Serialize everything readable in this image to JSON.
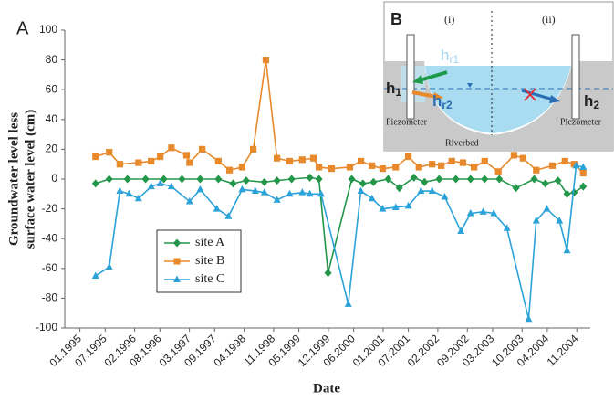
{
  "chart_data": {
    "type": "line",
    "panel_label": "A",
    "y_label_lines": [
      "Groundwater level less",
      "surface water level (cm)"
    ],
    "x_label": "Date",
    "xlim": [
      1994.7,
      2005.1
    ],
    "xticks": [
      {
        "value": 1995.0,
        "label": "01.1995"
      },
      {
        "value": 1995.5,
        "label": "07.1995"
      },
      {
        "value": 1996.083,
        "label": "02.1996"
      },
      {
        "value": 1996.583,
        "label": "08.1996"
      },
      {
        "value": 1997.167,
        "label": "03.1997"
      },
      {
        "value": 1997.667,
        "label": "09.1997"
      },
      {
        "value": 1998.25,
        "label": "04.1998"
      },
      {
        "value": 1998.833,
        "label": "11.1998"
      },
      {
        "value": 1999.333,
        "label": "05.1999"
      },
      {
        "value": 1999.917,
        "label": "12.1999"
      },
      {
        "value": 2000.417,
        "label": "06.2000"
      },
      {
        "value": 2001.0,
        "label": "01.2001"
      },
      {
        "value": 2001.5,
        "label": "07.2001"
      },
      {
        "value": 2002.083,
        "label": "02.2002"
      },
      {
        "value": 2002.667,
        "label": "09.2002"
      },
      {
        "value": 2003.167,
        "label": "03.2003"
      },
      {
        "value": 2003.75,
        "label": "10.2003"
      },
      {
        "value": 2004.25,
        "label": "04.2004"
      },
      {
        "value": 2004.833,
        "label": "11.2004"
      }
    ],
    "ylim": [
      -100,
      100
    ],
    "yticks": [
      -100,
      -80,
      -60,
      -40,
      -20,
      0,
      20,
      40,
      60,
      80,
      100
    ],
    "legend": "lower-left",
    "series": [
      {
        "name": "site A",
        "color": "#23964a",
        "marker": "diamond",
        "x": [
          1995.31,
          1995.58,
          1995.94,
          1996.3,
          1996.66,
          1997.02,
          1997.38,
          1997.74,
          1998.03,
          1998.29,
          1998.65,
          1998.9,
          1999.19,
          1999.55,
          1999.73,
          1999.91,
          2000.38,
          2000.6,
          2000.81,
          2001.1,
          2001.32,
          2001.61,
          2001.82,
          2002.11,
          2002.44,
          2002.73,
          2003.01,
          2003.3,
          2003.63,
          2003.99,
          2004.21,
          2004.46,
          2004.64,
          2004.78,
          2004.96
        ],
        "values": [
          -3,
          0,
          0,
          0,
          0,
          0,
          0,
          0,
          -3,
          -1,
          -2,
          -1,
          0,
          1,
          0,
          -63,
          0,
          -3,
          -2,
          0,
          -6,
          1,
          -2,
          0,
          0,
          0,
          0,
          0,
          -6,
          0,
          -3,
          -1,
          -10,
          -9,
          -5
        ]
      },
      {
        "name": "site B",
        "color": "#e8892b",
        "marker": "square",
        "x": [
          1995.31,
          1995.58,
          1995.79,
          1996.16,
          1996.41,
          1996.59,
          1996.81,
          1997.11,
          1997.17,
          1997.42,
          1997.74,
          1997.96,
          1998.21,
          1998.43,
          1998.68,
          1998.9,
          1999.15,
          1999.4,
          1999.62,
          1999.73,
          1999.98,
          2000.34,
          2000.56,
          2000.78,
          2000.99,
          2001.25,
          2001.5,
          2001.71,
          2001.97,
          2002.15,
          2002.36,
          2002.58,
          2002.8,
          2003.01,
          2003.28,
          2003.59,
          2003.77,
          2004.03,
          2004.35,
          2004.6,
          2004.78,
          2004.96
        ],
        "values": [
          15,
          18,
          10,
          11,
          12,
          15,
          21,
          16,
          11,
          20,
          12,
          6,
          8,
          20,
          80,
          14,
          12,
          13,
          14,
          8,
          7,
          8,
          12,
          9,
          7,
          8,
          15,
          8,
          10,
          9,
          12,
          11,
          8,
          12,
          5,
          16,
          14,
          6,
          9,
          12,
          10,
          4
        ]
      },
      {
        "name": "site C",
        "color": "#2ca3d8",
        "marker": "triangle",
        "x": [
          1995.31,
          1995.58,
          1995.79,
          1995.97,
          1996.16,
          1996.41,
          1996.59,
          1996.81,
          1997.17,
          1997.38,
          1997.71,
          1997.94,
          1998.21,
          1998.47,
          1998.65,
          1998.9,
          1999.15,
          1999.4,
          1999.55,
          1999.77,
          2000.31,
          2000.56,
          2000.78,
          2000.99,
          2001.25,
          2001.5,
          2001.75,
          2001.97,
          2002.22,
          2002.54,
          2002.73,
          2002.98,
          2003.19,
          2003.45,
          2003.88,
          2004.03,
          2004.24,
          2004.49,
          2004.64,
          2004.82,
          2004.96
        ],
        "values": [
          -65,
          -59,
          -8,
          -10,
          -13,
          -5,
          -3,
          -5,
          -15,
          -7,
          -20,
          -25,
          -7,
          -8,
          -9,
          -14,
          -10,
          -9,
          -10,
          -10,
          -84,
          -8,
          -13,
          -20,
          -19,
          -18,
          -8,
          -8,
          -12,
          -35,
          -23,
          -22,
          -23,
          -33,
          -94,
          -28,
          -20,
          -28,
          -48,
          9,
          8
        ]
      }
    ]
  },
  "inset": {
    "label": "B",
    "zone_i": "(i)",
    "zone_ii": "(ii)",
    "hr1": {
      "base": "h",
      "sub": "r1"
    },
    "hr2": {
      "base": "h",
      "sub": "r2"
    },
    "h1": {
      "base": "h",
      "sub": "1"
    },
    "h2": {
      "base": "h",
      "sub": "2"
    },
    "piezometer_left": "Piezometer",
    "piezometer_right": "Piezometer",
    "riverbed": "Riverbed"
  }
}
